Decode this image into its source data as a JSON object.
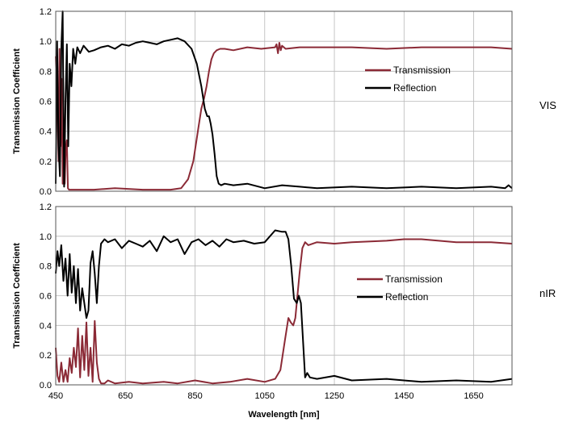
{
  "chart_data": [
    {
      "type": "line",
      "side_label": "VIS",
      "ylabel": "Transmission Coefficient",
      "xlabel": "",
      "xlim": [
        450,
        1760
      ],
      "ylim": [
        0,
        1.2
      ],
      "x_ticks": [],
      "y_ticks": [
        "0.0",
        "0.2",
        "0.4",
        "0.6",
        "0.8",
        "1.0",
        "1.2"
      ],
      "grid": true,
      "legend_position": "right-middle",
      "series": [
        {
          "name": "Transmission",
          "color": "#8B2A36",
          "x": [
            450,
            455,
            458,
            461,
            464,
            467,
            470,
            473,
            476,
            479,
            482,
            485,
            488,
            495,
            520,
            560,
            620,
            700,
            780,
            810,
            830,
            845,
            858,
            868,
            876,
            883,
            890,
            897,
            904,
            912,
            922,
            935,
            960,
            1000,
            1040,
            1080,
            1084,
            1088,
            1092,
            1096,
            1100,
            1110,
            1150,
            1200,
            1300,
            1400,
            1500,
            1600,
            1700,
            1760
          ],
          "y": [
            0.9,
            0.55,
            0.2,
            0.95,
            0.3,
            0.75,
            0.05,
            0.35,
            0.05,
            0.3,
            0.34,
            0.02,
            0.01,
            0.01,
            0.01,
            0.01,
            0.02,
            0.01,
            0.01,
            0.02,
            0.08,
            0.2,
            0.4,
            0.55,
            0.62,
            0.7,
            0.8,
            0.88,
            0.92,
            0.94,
            0.95,
            0.95,
            0.94,
            0.96,
            0.95,
            0.96,
            0.98,
            0.92,
            0.99,
            0.94,
            0.97,
            0.95,
            0.96,
            0.96,
            0.96,
            0.95,
            0.96,
            0.96,
            0.96,
            0.95
          ]
        },
        {
          "name": "Reflection",
          "color": "#000000",
          "x": [
            450,
            454,
            458,
            462,
            466,
            470,
            474,
            478,
            482,
            486,
            490,
            495,
            500,
            506,
            512,
            520,
            530,
            545,
            560,
            580,
            600,
            620,
            640,
            660,
            680,
            700,
            720,
            740,
            760,
            780,
            800,
            820,
            840,
            855,
            868,
            878,
            885,
            890,
            895,
            900,
            906,
            912,
            918,
            925,
            935,
            960,
            1000,
            1050,
            1100,
            1150,
            1200,
            1300,
            1400,
            1500,
            1600,
            1700,
            1740,
            1750,
            1760
          ],
          "y": [
            0.05,
            1.0,
            0.3,
            0.1,
            0.95,
            1.2,
            0.03,
            0.6,
            0.98,
            0.3,
            0.85,
            0.7,
            0.95,
            0.85,
            0.96,
            0.92,
            0.97,
            0.93,
            0.94,
            0.96,
            0.97,
            0.95,
            0.98,
            0.97,
            0.99,
            1.0,
            0.99,
            0.98,
            1.0,
            1.01,
            1.02,
            1.0,
            0.95,
            0.85,
            0.7,
            0.55,
            0.5,
            0.5,
            0.45,
            0.38,
            0.25,
            0.1,
            0.05,
            0.04,
            0.05,
            0.04,
            0.05,
            0.02,
            0.04,
            0.03,
            0.02,
            0.03,
            0.02,
            0.03,
            0.02,
            0.03,
            0.02,
            0.04,
            0.02
          ]
        }
      ]
    },
    {
      "type": "line",
      "side_label": "nIR",
      "ylabel": "Transmission Coefficient",
      "xlabel": "Wavelength [nm]",
      "xlim": [
        450,
        1760
      ],
      "ylim": [
        0,
        1.2
      ],
      "x_ticks": [
        "450",
        "650",
        "850",
        "1050",
        "1250",
        "1450",
        "1650"
      ],
      "y_ticks": [
        "0.0",
        "0.2",
        "0.4",
        "0.6",
        "0.8",
        "1.0",
        "1.2"
      ],
      "grid": true,
      "legend_position": "right-middle",
      "series": [
        {
          "name": "Transmission",
          "color": "#8B2A36",
          "x": [
            450,
            455,
            460,
            466,
            472,
            478,
            484,
            490,
            496,
            502,
            508,
            514,
            520,
            526,
            532,
            538,
            544,
            550,
            556,
            562,
            568,
            574,
            580,
            590,
            600,
            620,
            660,
            700,
            760,
            800,
            850,
            900,
            950,
            1000,
            1050,
            1080,
            1095,
            1108,
            1118,
            1125,
            1132,
            1138,
            1144,
            1150,
            1158,
            1166,
            1175,
            1200,
            1250,
            1300,
            1400,
            1450,
            1500,
            1600,
            1700,
            1760
          ],
          "y": [
            0.25,
            0.06,
            0.02,
            0.15,
            0.02,
            0.1,
            0.02,
            0.18,
            0.08,
            0.25,
            0.12,
            0.38,
            0.05,
            0.33,
            0.1,
            0.42,
            0.06,
            0.25,
            0.02,
            0.43,
            0.15,
            0.04,
            0.01,
            0.01,
            0.03,
            0.01,
            0.02,
            0.01,
            0.02,
            0.01,
            0.03,
            0.01,
            0.02,
            0.04,
            0.02,
            0.04,
            0.1,
            0.3,
            0.45,
            0.42,
            0.4,
            0.45,
            0.6,
            0.75,
            0.92,
            0.96,
            0.94,
            0.96,
            0.95,
            0.96,
            0.97,
            0.98,
            0.98,
            0.96,
            0.96,
            0.95
          ]
        },
        {
          "name": "Reflection",
          "color": "#000000",
          "x": [
            450,
            455,
            460,
            466,
            472,
            478,
            484,
            490,
            496,
            502,
            508,
            514,
            520,
            526,
            532,
            538,
            544,
            550,
            556,
            562,
            568,
            574,
            580,
            590,
            600,
            620,
            640,
            660,
            680,
            700,
            720,
            740,
            760,
            780,
            800,
            820,
            840,
            860,
            880,
            900,
            920,
            940,
            960,
            990,
            1020,
            1050,
            1080,
            1100,
            1110,
            1118,
            1126,
            1134,
            1142,
            1148,
            1154,
            1160,
            1166,
            1172,
            1180,
            1200,
            1250,
            1300,
            1400,
            1500,
            1600,
            1700,
            1760
          ],
          "y": [
            0.75,
            0.9,
            0.8,
            0.94,
            0.7,
            0.85,
            0.6,
            0.88,
            0.62,
            0.8,
            0.55,
            0.78,
            0.5,
            0.65,
            0.55,
            0.45,
            0.5,
            0.82,
            0.9,
            0.75,
            0.55,
            0.8,
            0.95,
            0.98,
            0.96,
            0.98,
            0.92,
            0.97,
            0.95,
            0.93,
            0.97,
            0.9,
            1.0,
            0.96,
            0.98,
            0.88,
            0.96,
            0.98,
            0.94,
            0.97,
            0.93,
            0.98,
            0.96,
            0.97,
            0.95,
            0.96,
            1.04,
            1.03,
            1.03,
            0.98,
            0.8,
            0.58,
            0.55,
            0.6,
            0.55,
            0.3,
            0.05,
            0.08,
            0.05,
            0.04,
            0.06,
            0.03,
            0.04,
            0.02,
            0.03,
            0.02,
            0.04
          ]
        }
      ]
    }
  ]
}
